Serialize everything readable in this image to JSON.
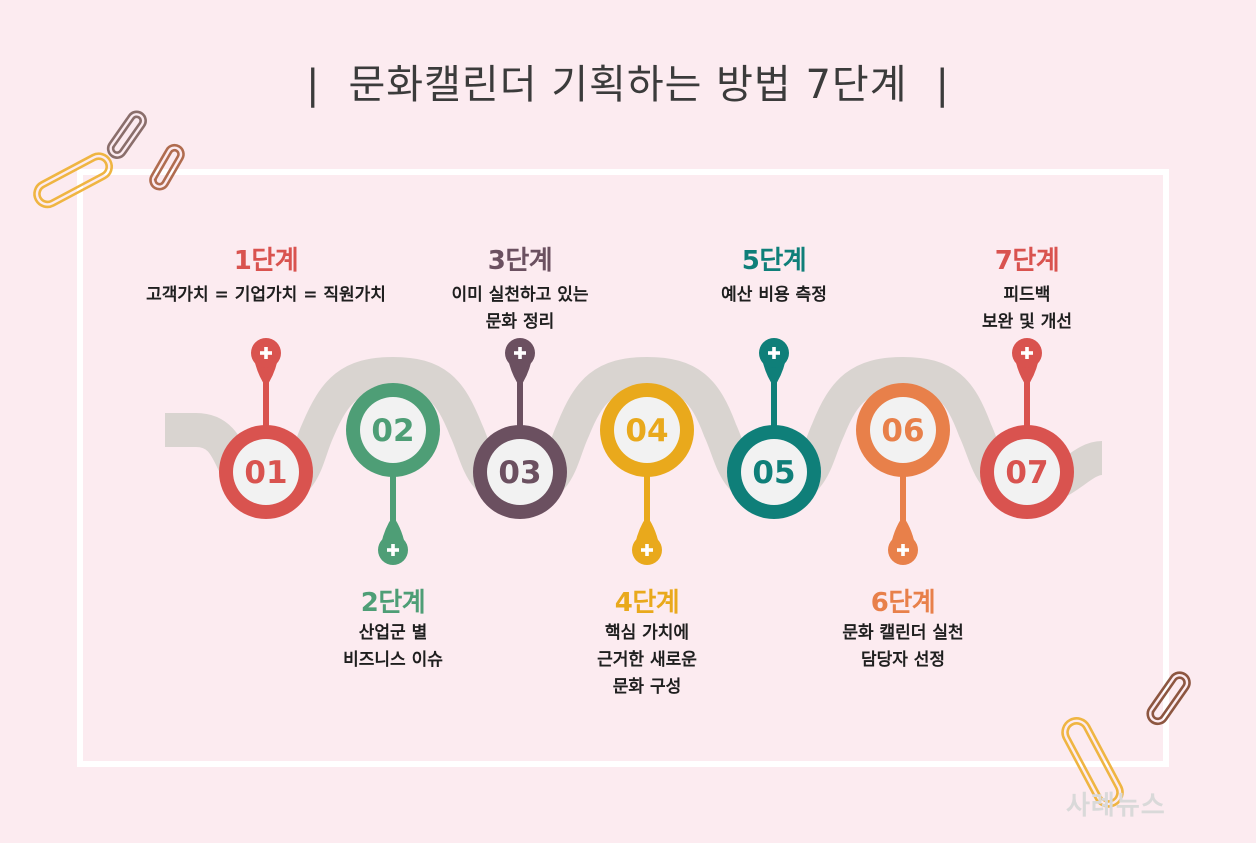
{
  "title": "문화캘린더 기획하는 방법 7단계",
  "colors": {
    "background": "#fcebf0",
    "frame": "#ffffff",
    "track": "#d9d4d0",
    "inner_circle": "#f2f2f2"
  },
  "steps": [
    {
      "number": "01",
      "label": "1단계",
      "lines": [
        "고객가치 = 기업가치 = 직원가치"
      ],
      "color": "#d9534f",
      "position": "top"
    },
    {
      "number": "02",
      "label": "2단계",
      "lines": [
        "산업군 별",
        "비즈니스 이슈"
      ],
      "color": "#4e9e76",
      "position": "bottom"
    },
    {
      "number": "03",
      "label": "3단계",
      "lines": [
        "이미 실천하고 있는",
        "문화 정리"
      ],
      "color": "#6b5060",
      "position": "top"
    },
    {
      "number": "04",
      "label": "4단계",
      "lines": [
        "핵심 가치에",
        "근거한 새로운",
        "문화 구성"
      ],
      "color": "#e9a91c",
      "position": "bottom"
    },
    {
      "number": "05",
      "label": "5단계",
      "lines": [
        "예산 비용 측정"
      ],
      "color": "#0f7f79",
      "position": "top"
    },
    {
      "number": "06",
      "label": "6단계",
      "lines": [
        "문화 캘린더 실천",
        "담당자 선정"
      ],
      "color": "#e8804a",
      "position": "bottom"
    },
    {
      "number": "07",
      "label": "7단계",
      "lines": [
        "피드백",
        "보완 및 개선"
      ],
      "color": "#d9534f",
      "position": "top"
    }
  ],
  "icons": {
    "pin_symbol": "plus-icon",
    "decoration": "paperclip-icon"
  },
  "watermark": "사례뉴스"
}
